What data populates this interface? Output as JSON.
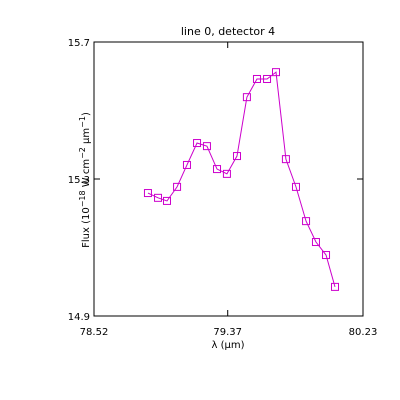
{
  "chart_data": {
    "type": "line",
    "title": "line 0, detector 4",
    "xlabel": "λ (μm)",
    "ylabel": [
      "Flux (10",
      "−18",
      " W cm",
      "−2",
      " μm",
      "−1",
      ")"
    ],
    "x": [
      78.863,
      78.927,
      78.984,
      79.048,
      79.111,
      79.175,
      79.238,
      79.302,
      79.365,
      79.429,
      79.492,
      79.556,
      79.62,
      79.677,
      79.74,
      79.804,
      79.868,
      79.931,
      79.995,
      80.052
    ],
    "series": [
      {
        "color": "#cc00cc",
        "values": [
          15.259,
          15.245,
          15.236,
          15.277,
          15.341,
          15.405,
          15.396,
          15.329,
          15.315,
          15.367,
          15.539,
          15.592,
          15.592,
          15.612,
          15.358,
          15.277,
          15.177,
          15.116,
          15.078,
          14.985
        ]
      }
    ],
    "xlim": [
      78.52,
      80.23
    ],
    "xticks": [
      78.52,
      79.37,
      80.23
    ],
    "ylim": [
      14.9,
      15.7
    ],
    "yticks": [
      14.9,
      15.3,
      15.7
    ],
    "marker": "open-square"
  }
}
